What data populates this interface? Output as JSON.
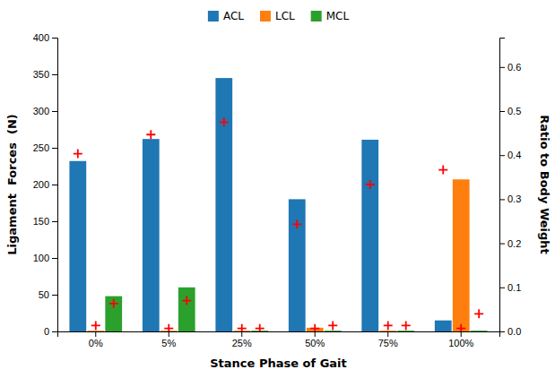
{
  "chart_data": {
    "type": "bar",
    "xlabel": "Stance Phase of Gait",
    "ylabel": "Ligament  Forces  (N)",
    "y2label": "Ratio to Body Weight",
    "categories": [
      "0%",
      "5%",
      "25%",
      "50%",
      "75%",
      "100%"
    ],
    "series": [
      {
        "name": "ACL",
        "values": [
          232,
          262,
          345,
          180,
          261,
          15
        ]
      },
      {
        "name": "LCL",
        "values": [
          1,
          1,
          1,
          5,
          1,
          207
        ]
      },
      {
        "name": "MCL",
        "values": [
          48,
          60,
          1,
          1,
          1,
          1
        ]
      },
      {
        "type": "scatter",
        "marker": "plus",
        "color": "#FF0000",
        "values": [
          242,
          268,
          285,
          146,
          200,
          220
        ]
      },
      {
        "type": "scatter",
        "marker": "plus",
        "color": "#FF0000",
        "values": [
          8,
          4,
          4,
          4,
          8,
          4
        ]
      },
      {
        "type": "scatter",
        "marker": "plus",
        "color": "#FF0000",
        "values": [
          38,
          42,
          4,
          8,
          8,
          24
        ]
      }
    ],
    "ylim": [
      0,
      400
    ],
    "yticks": [
      0,
      50,
      100,
      150,
      200,
      250,
      300,
      350,
      400
    ],
    "y2lim": [
      0,
      0.6667
    ],
    "y2ticks": [
      {
        "value": 0.0,
        "label": "0.0"
      },
      0.1,
      0.2,
      0.3,
      0.4,
      0.5,
      0.6
    ],
    "legend": "top",
    "grid": false
  }
}
